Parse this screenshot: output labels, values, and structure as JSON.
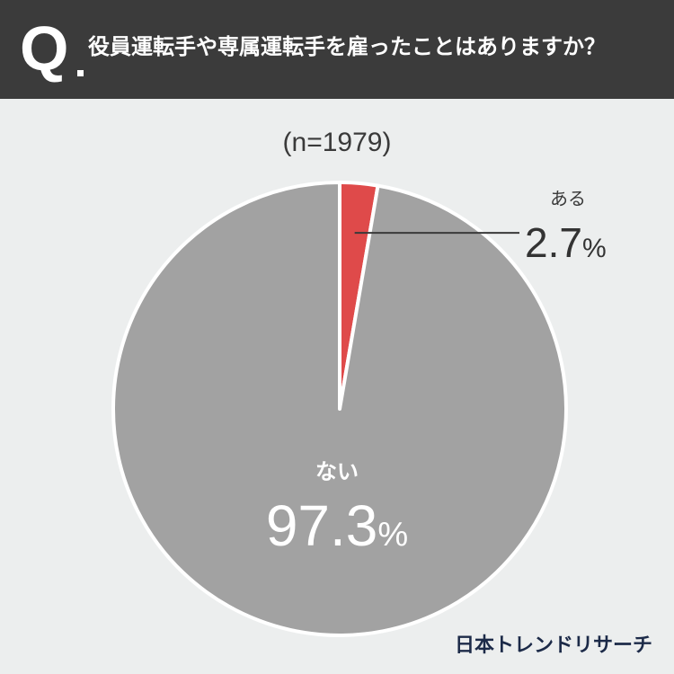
{
  "header": {
    "q_mark": "Q",
    "question": "役員運転手や専属運転手を雇ったことはありますか？",
    "background": "#3b3b3b"
  },
  "sample_size": "(n=1979)",
  "chart_data": {
    "type": "pie",
    "title": "役員運転手や専属運転手を雇ったことはありますか？",
    "categories": [
      "ある",
      "ない"
    ],
    "values": [
      2.7,
      97.3
    ],
    "unit": "%",
    "colors": [
      "#df4a4a",
      "#a2a2a2"
    ],
    "n": 1979
  },
  "labels": {
    "yes_label": "ある",
    "yes_value": "2.7",
    "no_label": "ない",
    "no_value": "97.3",
    "percent_sign": "%"
  },
  "brand": "日本トレンドリサーチ"
}
